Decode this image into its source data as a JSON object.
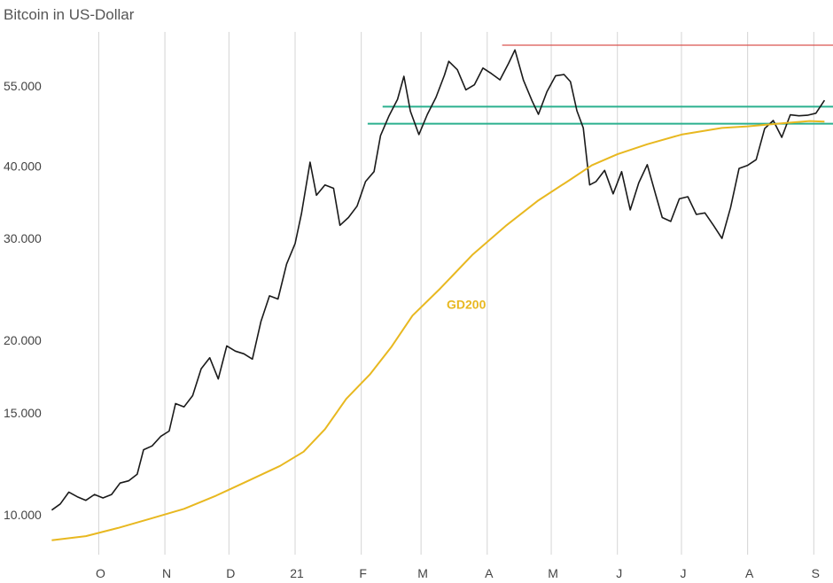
{
  "chart_data": {
    "type": "line",
    "title": "Bitcoin in US-Dollar",
    "y_scale": "log",
    "ylim": [
      8500,
      68000
    ],
    "y_ticks": [
      {
        "value": 10000,
        "label": "10.000"
      },
      {
        "value": 15000,
        "label": "15.000"
      },
      {
        "value": 20000,
        "label": "20.000"
      },
      {
        "value": 30000,
        "label": "30.000"
      },
      {
        "value": 40000,
        "label": "40.000"
      },
      {
        "value": 55000,
        "label": "55.000"
      }
    ],
    "xlim": [
      "2020-09-08",
      "2021-09-10"
    ],
    "x_ticks": [
      {
        "date": "2020-10-01",
        "label": "O"
      },
      {
        "date": "2020-11-01",
        "label": "N"
      },
      {
        "date": "2020-12-01",
        "label": "D"
      },
      {
        "date": "2021-01-01",
        "label": "21"
      },
      {
        "date": "2021-02-01",
        "label": "F"
      },
      {
        "date": "2021-03-01",
        "label": "M"
      },
      {
        "date": "2021-04-01",
        "label": "A"
      },
      {
        "date": "2021-05-01",
        "label": "M"
      },
      {
        "date": "2021-06-01",
        "label": "J"
      },
      {
        "date": "2021-07-01",
        "label": "J"
      },
      {
        "date": "2021-08-01",
        "label": "A"
      },
      {
        "date": "2021-09-01",
        "label": "S"
      }
    ],
    "grid": {
      "vertical": true,
      "horizontal": false
    },
    "series": [
      {
        "name": "",
        "color": "#1a1a1a",
        "points": [
          [
            "2020-09-09",
            10150
          ],
          [
            "2020-09-13",
            10400
          ],
          [
            "2020-09-17",
            10900
          ],
          [
            "2020-09-21",
            10700
          ],
          [
            "2020-09-25",
            10550
          ],
          [
            "2020-09-29",
            10800
          ],
          [
            "2020-10-03",
            10650
          ],
          [
            "2020-10-07",
            10800
          ],
          [
            "2020-10-11",
            11300
          ],
          [
            "2020-10-15",
            11400
          ],
          [
            "2020-10-19",
            11700
          ],
          [
            "2020-10-22",
            12900
          ],
          [
            "2020-10-26",
            13100
          ],
          [
            "2020-10-30",
            13600
          ],
          [
            "2020-11-03",
            13900
          ],
          [
            "2020-11-06",
            15500
          ],
          [
            "2020-11-10",
            15300
          ],
          [
            "2020-11-14",
            16000
          ],
          [
            "2020-11-18",
            17800
          ],
          [
            "2020-11-22",
            18600
          ],
          [
            "2020-11-26",
            17100
          ],
          [
            "2020-11-30",
            19500
          ],
          [
            "2020-12-04",
            19100
          ],
          [
            "2020-12-08",
            18900
          ],
          [
            "2020-12-12",
            18500
          ],
          [
            "2020-12-16",
            21500
          ],
          [
            "2020-12-20",
            23800
          ],
          [
            "2020-12-24",
            23500
          ],
          [
            "2020-12-28",
            27000
          ],
          [
            "2021-01-01",
            29300
          ],
          [
            "2021-01-04",
            33000
          ],
          [
            "2021-01-08",
            40500
          ],
          [
            "2021-01-11",
            35500
          ],
          [
            "2021-01-15",
            37000
          ],
          [
            "2021-01-19",
            36500
          ],
          [
            "2021-01-22",
            31500
          ],
          [
            "2021-01-26",
            32500
          ],
          [
            "2021-01-30",
            34000
          ],
          [
            "2021-02-03",
            37500
          ],
          [
            "2021-02-07",
            39000
          ],
          [
            "2021-02-10",
            45000
          ],
          [
            "2021-02-14",
            48700
          ],
          [
            "2021-02-18",
            52000
          ],
          [
            "2021-02-21",
            57000
          ],
          [
            "2021-02-24",
            49600
          ],
          [
            "2021-02-28",
            45200
          ],
          [
            "2021-03-04",
            49000
          ],
          [
            "2021-03-08",
            52400
          ],
          [
            "2021-03-12",
            57300
          ],
          [
            "2021-03-14",
            60500
          ],
          [
            "2021-03-18",
            58500
          ],
          [
            "2021-03-22",
            54000
          ],
          [
            "2021-03-26",
            55100
          ],
          [
            "2021-03-30",
            58900
          ],
          [
            "2021-04-03",
            57600
          ],
          [
            "2021-04-07",
            56200
          ],
          [
            "2021-04-11",
            60000
          ],
          [
            "2021-04-14",
            63300
          ],
          [
            "2021-04-18",
            56100
          ],
          [
            "2021-04-22",
            51700
          ],
          [
            "2021-04-25",
            49000
          ],
          [
            "2021-04-29",
            53600
          ],
          [
            "2021-05-03",
            57100
          ],
          [
            "2021-05-07",
            57400
          ],
          [
            "2021-05-10",
            55800
          ],
          [
            "2021-05-13",
            49700
          ],
          [
            "2021-05-16",
            46400
          ],
          [
            "2021-05-19",
            37000
          ],
          [
            "2021-05-22",
            37500
          ],
          [
            "2021-05-26",
            39200
          ],
          [
            "2021-05-30",
            35700
          ],
          [
            "2021-06-03",
            39000
          ],
          [
            "2021-06-07",
            33500
          ],
          [
            "2021-06-11",
            37300
          ],
          [
            "2021-06-15",
            40100
          ],
          [
            "2021-06-19",
            35500
          ],
          [
            "2021-06-22",
            32500
          ],
          [
            "2021-06-26",
            32000
          ],
          [
            "2021-06-30",
            35000
          ],
          [
            "2021-07-04",
            35300
          ],
          [
            "2021-07-08",
            32900
          ],
          [
            "2021-07-12",
            33100
          ],
          [
            "2021-07-16",
            31500
          ],
          [
            "2021-07-20",
            29900
          ],
          [
            "2021-07-24",
            33800
          ],
          [
            "2021-07-28",
            39500
          ],
          [
            "2021-08-01",
            40000
          ],
          [
            "2021-08-05",
            40900
          ],
          [
            "2021-08-09",
            46300
          ],
          [
            "2021-08-13",
            47800
          ],
          [
            "2021-08-17",
            44700
          ],
          [
            "2021-08-21",
            48900
          ],
          [
            "2021-08-25",
            48700
          ],
          [
            "2021-08-29",
            48800
          ],
          [
            "2021-09-02",
            49200
          ],
          [
            "2021-09-06",
            51800
          ]
        ]
      },
      {
        "name": "GD200",
        "color": "#e8b820",
        "points": [
          [
            "2020-09-09",
            9000
          ],
          [
            "2020-09-25",
            9150
          ],
          [
            "2020-10-10",
            9450
          ],
          [
            "2020-10-25",
            9800
          ],
          [
            "2020-11-10",
            10200
          ],
          [
            "2020-11-25",
            10750
          ],
          [
            "2020-12-10",
            11400
          ],
          [
            "2020-12-25",
            12100
          ],
          [
            "2021-01-05",
            12800
          ],
          [
            "2021-01-15",
            14000
          ],
          [
            "2021-01-25",
            15800
          ],
          [
            "2021-02-05",
            17400
          ],
          [
            "2021-02-15",
            19400
          ],
          [
            "2021-02-25",
            22000
          ],
          [
            "2021-03-10",
            24500
          ],
          [
            "2021-03-25",
            28000
          ],
          [
            "2021-04-10",
            31500
          ],
          [
            "2021-04-25",
            34800
          ],
          [
            "2021-05-10",
            37800
          ],
          [
            "2021-05-20",
            40000
          ],
          [
            "2021-06-01",
            41800
          ],
          [
            "2021-06-15",
            43500
          ],
          [
            "2021-07-01",
            45200
          ],
          [
            "2021-07-20",
            46400
          ],
          [
            "2021-08-01",
            46700
          ],
          [
            "2021-08-15",
            47200
          ],
          [
            "2021-08-30",
            47700
          ],
          [
            "2021-09-06",
            47600
          ]
        ]
      }
    ],
    "horizontal_lines": [
      {
        "value": 64500,
        "from": "2021-04-08",
        "to": "2021-09-10",
        "color": "#d9534f"
      },
      {
        "value": 50500,
        "from": "2021-02-11",
        "to": "2021-09-10",
        "color": "#2bb08f"
      },
      {
        "value": 47200,
        "from": "2021-02-04",
        "to": "2021-09-10",
        "color": "#2bb08f"
      }
    ],
    "annotations": [
      {
        "text": "GD200",
        "date": "2021-03-13",
        "value": 22600,
        "color": "#e8b820"
      }
    ]
  }
}
